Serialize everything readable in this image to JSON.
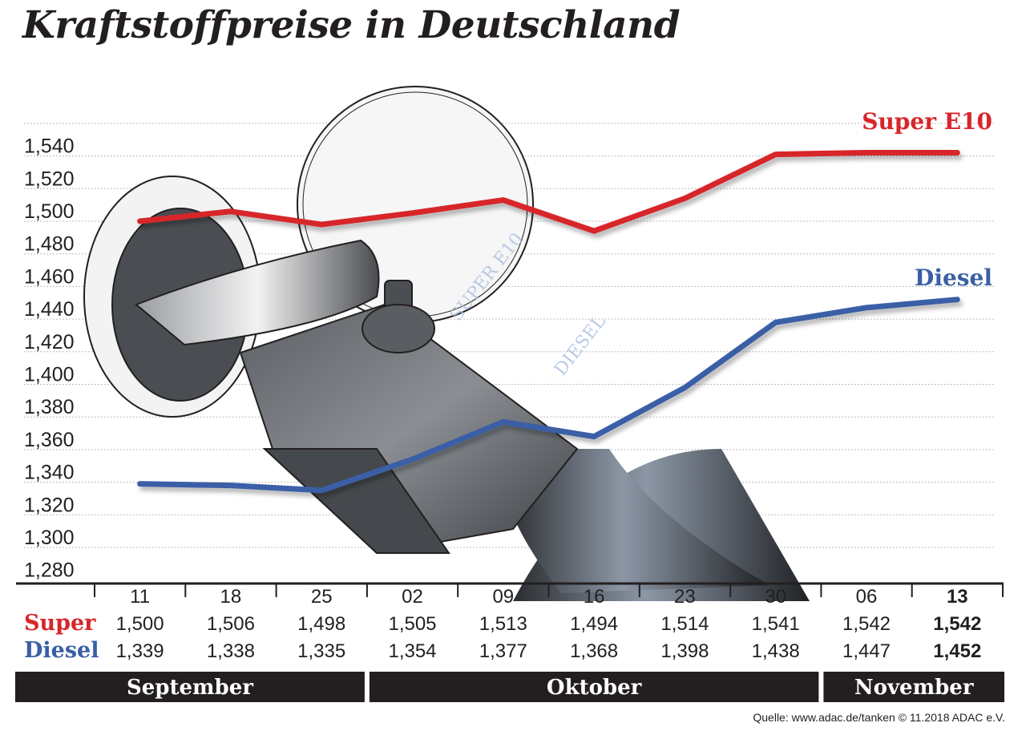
{
  "title": "Kraftstoffpreise in Deutschland",
  "source": "Quelle: www.adac.de/tanken   © 11.2018  ADAC e.V.",
  "illustration": {
    "display_label_1": "SUPER E10",
    "display_label_2": "DIESEL"
  },
  "chart_data": {
    "type": "line",
    "title": "Kraftstoffpreise in Deutschland",
    "categories": [
      "11",
      "18",
      "25",
      "02",
      "09",
      "16",
      "23",
      "30",
      "06",
      "13"
    ],
    "months": [
      {
        "name": "September",
        "categories": [
          "11",
          "18",
          "25"
        ]
      },
      {
        "name": "Oktober",
        "categories": [
          "02",
          "09",
          "16",
          "23",
          "30"
        ]
      },
      {
        "name": "November",
        "categories": [
          "06",
          "13"
        ]
      }
    ],
    "yticks": [
      "1,280",
      "1,300",
      "1,320",
      "1,340",
      "1,360",
      "1,380",
      "1,400",
      "1,420",
      "1,440",
      "1,460",
      "1,480",
      "1,500",
      "1,520",
      "1,540"
    ],
    "ylim": [
      1.28,
      1.56
    ],
    "grid": true,
    "series": [
      {
        "name": "Super E10",
        "table_label": "Super",
        "color": "#d7262b",
        "values": [
          1.5,
          1.506,
          1.498,
          1.505,
          1.513,
          1.494,
          1.514,
          1.541,
          1.542,
          1.542
        ],
        "labels": [
          "1,500",
          "1,506",
          "1,498",
          "1,505",
          "1,513",
          "1,494",
          "1,514",
          "1,541",
          "1,542",
          "1,542"
        ]
      },
      {
        "name": "Diesel",
        "table_label": "Diesel",
        "color": "#3a5fa6",
        "values": [
          1.339,
          1.338,
          1.335,
          1.354,
          1.377,
          1.368,
          1.398,
          1.438,
          1.447,
          1.452
        ],
        "labels": [
          "1,339",
          "1,338",
          "1,335",
          "1,354",
          "1,377",
          "1,368",
          "1,398",
          "1,438",
          "1,447",
          "1,452"
        ]
      }
    ]
  }
}
